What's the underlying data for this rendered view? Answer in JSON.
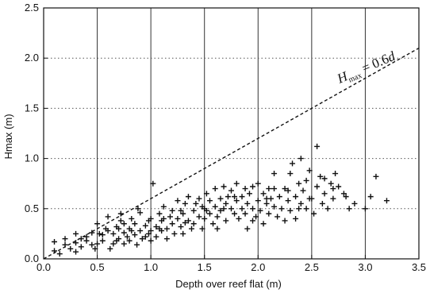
{
  "chart_data": {
    "type": "scatter",
    "xlabel": "Depth over reef flat (m)",
    "ylabel": "Hmax (m)",
    "xlim": [
      0.0,
      3.5
    ],
    "ylim": [
      0.0,
      2.5
    ],
    "x_ticks": [
      "0.0",
      "0.5",
      "1.0",
      "1.5",
      "2.0",
      "2.5",
      "3.0",
      "3.5"
    ],
    "y_ticks": [
      "0.0",
      "0.5",
      "1.0",
      "1.5",
      "2.0",
      "2.5"
    ],
    "grid": "vertical solid, horizontal dotted",
    "marker": "plus",
    "annotation": {
      "text_main": "H",
      "text_sub": "max",
      "text_rest": " = 0.6",
      "text_var": "d",
      "line": {
        "slope": 0.6,
        "x": [
          0.0,
          3.5
        ],
        "style": "dashed"
      }
    },
    "points": [
      [
        0.1,
        0.17
      ],
      [
        0.1,
        0.08
      ],
      [
        0.15,
        0.05
      ],
      [
        0.2,
        0.14
      ],
      [
        0.2,
        0.2
      ],
      [
        0.25,
        0.1
      ],
      [
        0.3,
        0.07
      ],
      [
        0.3,
        0.16
      ],
      [
        0.3,
        0.25
      ],
      [
        0.35,
        0.12
      ],
      [
        0.4,
        0.22
      ],
      [
        0.4,
        0.18
      ],
      [
        0.45,
        0.26
      ],
      [
        0.45,
        0.14
      ],
      [
        0.5,
        0.15
      ],
      [
        0.5,
        0.35
      ],
      [
        0.55,
        0.18
      ],
      [
        0.55,
        0.24
      ],
      [
        0.6,
        0.28
      ],
      [
        0.6,
        0.42
      ],
      [
        0.62,
        0.1
      ],
      [
        0.65,
        0.25
      ],
      [
        0.65,
        0.15
      ],
      [
        0.68,
        0.32
      ],
      [
        0.7,
        0.2
      ],
      [
        0.7,
        0.3
      ],
      [
        0.72,
        0.38
      ],
      [
        0.75,
        0.15
      ],
      [
        0.75,
        0.26
      ],
      [
        0.75,
        0.35
      ],
      [
        0.78,
        0.22
      ],
      [
        0.8,
        0.3
      ],
      [
        0.8,
        0.18
      ],
      [
        0.82,
        0.4
      ],
      [
        0.85,
        0.24
      ],
      [
        0.85,
        0.35
      ],
      [
        0.87,
        0.14
      ],
      [
        0.9,
        0.28
      ],
      [
        0.9,
        0.46
      ],
      [
        0.92,
        0.2
      ],
      [
        0.95,
        0.33
      ],
      [
        0.95,
        0.22
      ],
      [
        0.98,
        0.38
      ],
      [
        1.0,
        0.28
      ],
      [
        1.0,
        0.4
      ],
      [
        1.0,
        0.18
      ],
      [
        1.02,
        0.75
      ],
      [
        1.05,
        0.32
      ],
      [
        1.05,
        0.22
      ],
      [
        1.08,
        0.45
      ],
      [
        1.1,
        0.28
      ],
      [
        1.1,
        0.38
      ],
      [
        1.12,
        0.52
      ],
      [
        1.15,
        0.3
      ],
      [
        1.15,
        0.2
      ],
      [
        1.18,
        0.42
      ],
      [
        1.2,
        0.35
      ],
      [
        1.2,
        0.48
      ],
      [
        1.22,
        0.25
      ],
      [
        1.25,
        0.58
      ],
      [
        1.25,
        0.4
      ],
      [
        1.28,
        0.32
      ],
      [
        1.3,
        0.45
      ],
      [
        1.3,
        0.25
      ],
      [
        1.32,
        0.55
      ],
      [
        1.35,
        0.38
      ],
      [
        1.35,
        0.62
      ],
      [
        1.38,
        0.3
      ],
      [
        1.4,
        0.48
      ],
      [
        1.4,
        0.35
      ],
      [
        1.42,
        0.55
      ],
      [
        1.45,
        0.42
      ],
      [
        1.45,
        0.6
      ],
      [
        1.48,
        0.3
      ],
      [
        1.5,
        0.5
      ],
      [
        1.5,
        0.4
      ],
      [
        1.52,
        0.65
      ],
      [
        1.55,
        0.45
      ],
      [
        1.55,
        0.58
      ],
      [
        1.58,
        0.35
      ],
      [
        1.6,
        0.52
      ],
      [
        1.6,
        0.7
      ],
      [
        1.62,
        0.42
      ],
      [
        1.65,
        0.6
      ],
      [
        1.65,
        0.48
      ],
      [
        1.68,
        0.72
      ],
      [
        1.7,
        0.55
      ],
      [
        1.7,
        0.38
      ],
      [
        1.72,
        0.62
      ],
      [
        1.75,
        0.5
      ],
      [
        1.75,
        0.68
      ],
      [
        1.78,
        0.45
      ],
      [
        1.8,
        0.58
      ],
      [
        1.8,
        0.75
      ],
      [
        1.82,
        0.4
      ],
      [
        1.85,
        0.62
      ],
      [
        1.85,
        0.5
      ],
      [
        1.88,
        0.7
      ],
      [
        1.9,
        0.55
      ],
      [
        1.9,
        0.3
      ],
      [
        1.92,
        0.65
      ],
      [
        1.95,
        0.5
      ],
      [
        1.95,
        0.72
      ],
      [
        1.98,
        0.42
      ],
      [
        2.0,
        0.58
      ],
      [
        2.0,
        0.75
      ],
      [
        2.02,
        0.48
      ],
      [
        2.05,
        0.65
      ],
      [
        2.05,
        0.35
      ],
      [
        2.08,
        0.55
      ],
      [
        2.1,
        0.7
      ],
      [
        2.1,
        0.45
      ],
      [
        2.12,
        0.6
      ],
      [
        2.15,
        0.52
      ],
      [
        2.15,
        0.85
      ],
      [
        2.18,
        0.42
      ],
      [
        2.2,
        0.62
      ],
      [
        2.22,
        0.5
      ],
      [
        2.25,
        0.7
      ],
      [
        2.25,
        0.38
      ],
      [
        2.28,
        0.58
      ],
      [
        2.3,
        0.85
      ],
      [
        2.3,
        0.48
      ],
      [
        2.32,
        0.95
      ],
      [
        2.35,
        0.62
      ],
      [
        2.35,
        0.4
      ],
      [
        2.38,
        0.75
      ],
      [
        2.4,
        0.55
      ],
      [
        2.4,
        1.0
      ],
      [
        2.42,
        0.68
      ],
      [
        2.45,
        0.5
      ],
      [
        2.45,
        0.78
      ],
      [
        2.48,
        0.88
      ],
      [
        2.5,
        0.6
      ],
      [
        2.52,
        0.45
      ],
      [
        2.55,
        1.12
      ],
      [
        2.55,
        0.72
      ],
      [
        2.58,
        0.82
      ],
      [
        2.6,
        0.55
      ],
      [
        2.62,
        0.65
      ],
      [
        2.65,
        0.5
      ],
      [
        2.68,
        0.75
      ],
      [
        2.7,
        0.6
      ],
      [
        2.72,
        0.85
      ],
      [
        2.75,
        0.72
      ],
      [
        2.8,
        0.65
      ],
      [
        2.85,
        0.5
      ],
      [
        2.9,
        0.55
      ],
      [
        3.0,
        0.5
      ],
      [
        3.05,
        0.62
      ],
      [
        3.1,
        0.82
      ],
      [
        3.2,
        0.58
      ],
      [
        0.48,
        0.1
      ],
      [
        0.58,
        0.3
      ],
      [
        0.72,
        0.45
      ],
      [
        0.88,
        0.5
      ],
      [
        1.08,
        0.3
      ],
      [
        1.28,
        0.48
      ],
      [
        1.48,
        0.52
      ],
      [
        1.62,
        0.3
      ],
      [
        1.78,
        0.62
      ],
      [
        1.95,
        0.38
      ],
      [
        2.15,
        0.7
      ],
      [
        2.38,
        0.5
      ],
      [
        2.62,
        0.8
      ],
      [
        2.82,
        0.62
      ],
      [
        0.35,
        0.2
      ],
      [
        0.52,
        0.25
      ],
      [
        0.68,
        0.18
      ],
      [
        0.82,
        0.28
      ],
      [
        0.98,
        0.25
      ],
      [
        1.12,
        0.4
      ],
      [
        1.32,
        0.36
      ],
      [
        1.52,
        0.48
      ],
      [
        1.68,
        0.5
      ],
      [
        1.88,
        0.45
      ],
      [
        2.08,
        0.6
      ],
      [
        2.28,
        0.68
      ],
      [
        2.48,
        0.6
      ],
      [
        2.7,
        0.7
      ]
    ]
  }
}
